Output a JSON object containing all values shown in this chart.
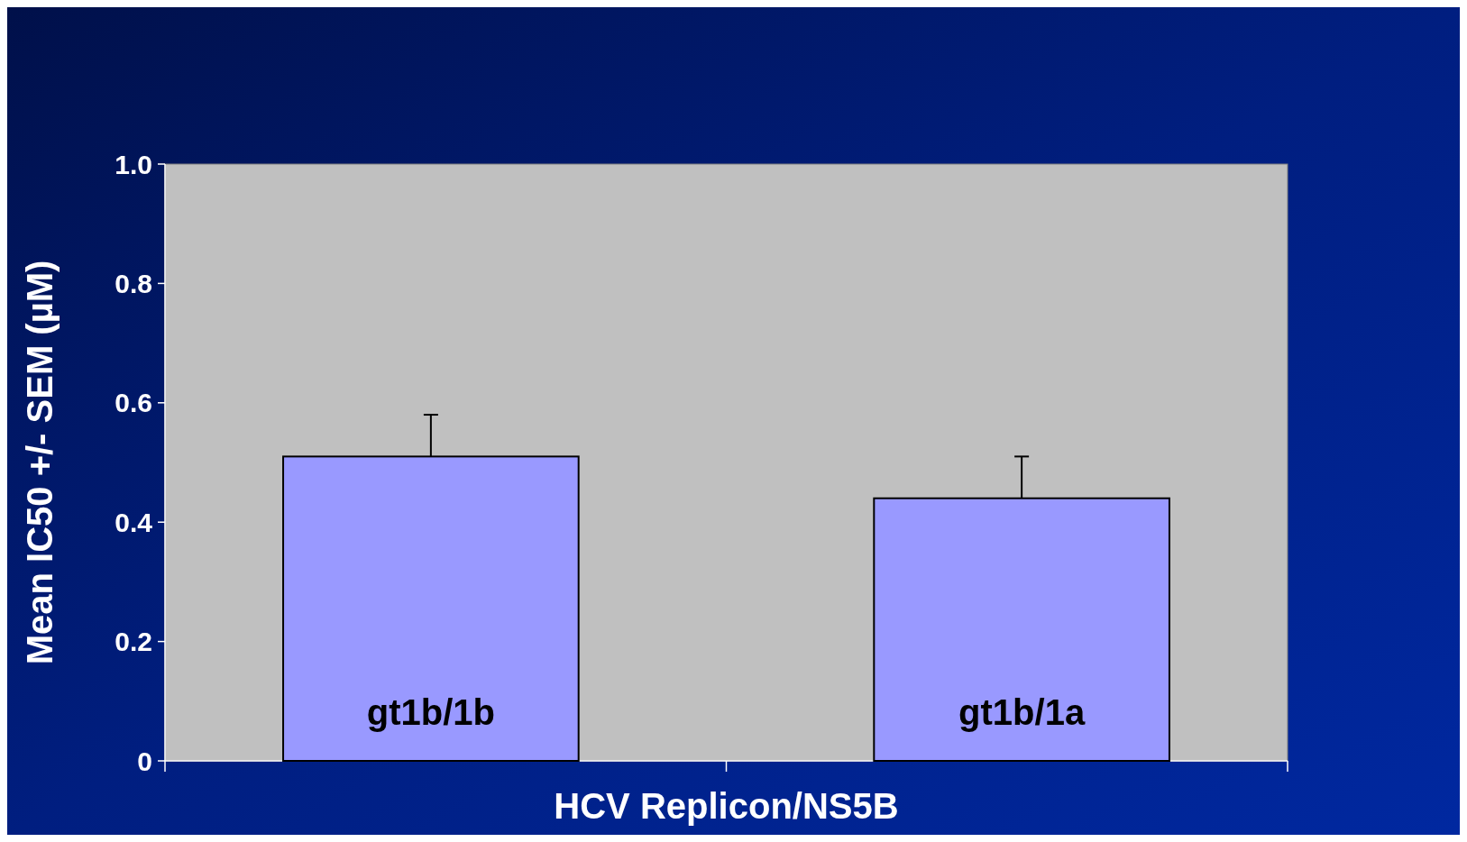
{
  "chart_data": {
    "type": "bar",
    "xlabel": "HCV Replicon/NS5B",
    "ylabel": "Mean IC50 +/- SEM (µM)",
    "categories": [
      "gt1b/1b",
      "gt1b/1a"
    ],
    "values": [
      0.51,
      0.44
    ],
    "errors": [
      [
        0.51,
        0.58
      ],
      [
        0.44,
        0.51
      ]
    ],
    "color": "#9999ff",
    "ylim": [
      0,
      1
    ],
    "yticks": [
      0,
      {
        "value": 0.2,
        "label": "0.2"
      },
      {
        "value": 0.4,
        "label": "0.4"
      },
      {
        "value": 0.6,
        "label": "0.6"
      },
      {
        "value": 0.8,
        "label": "0.8"
      },
      {
        "value": 1,
        "label": "1.0"
      }
    ],
    "grid": false
  }
}
